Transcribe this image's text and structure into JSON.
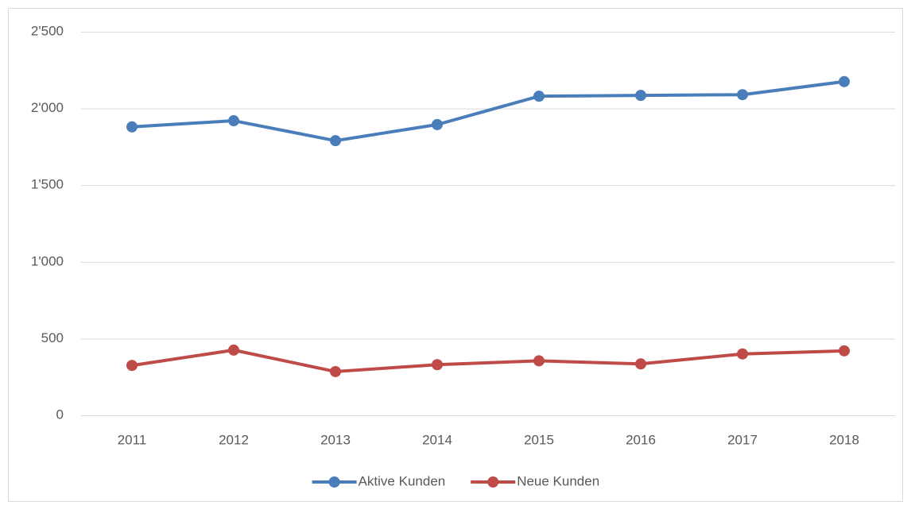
{
  "chart_data": {
    "type": "line",
    "categories": [
      "2011",
      "2012",
      "2013",
      "2014",
      "2015",
      "2016",
      "2017",
      "2018"
    ],
    "series": [
      {
        "name": "Aktive Kunden",
        "color": "#4a7ebb",
        "values": [
          1880,
          1920,
          1790,
          1895,
          2080,
          2085,
          2090,
          2175
        ]
      },
      {
        "name": "Neue Kunden",
        "color": "#be4b48",
        "values": [
          325,
          425,
          285,
          330,
          355,
          335,
          400,
          420
        ]
      }
    ],
    "ylim": [
      0,
      2500
    ],
    "yticks": [
      0,
      500,
      {
        "value": 1000,
        "label": "1'000"
      },
      {
        "value": 1500,
        "label": "1'500"
      },
      {
        "value": 2000,
        "label": "2'000"
      },
      {
        "value": 2500,
        "label": "2'500"
      }
    ],
    "grid": true,
    "legend": "bottom"
  }
}
